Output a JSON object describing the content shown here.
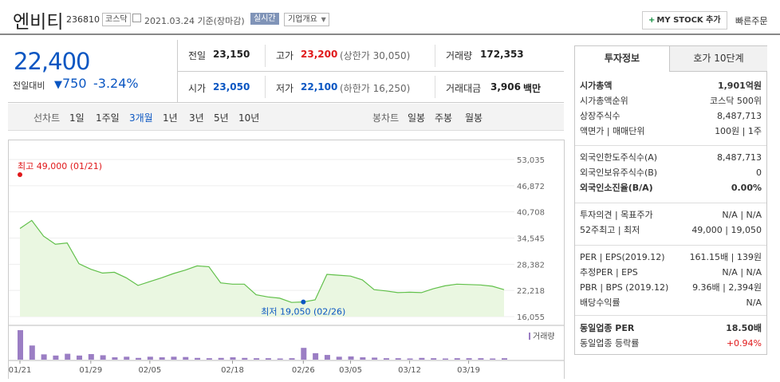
{
  "header": {
    "title": "엔비티",
    "code": "236810",
    "market_tag": "코스닥",
    "date_text": "2021.03.24  기준(장마감)",
    "realtime_tag": "실시간",
    "corp_overview": "기업개요",
    "my_stock_button": "MY STOCK 추가",
    "quick_order": "빠른주문"
  },
  "price": {
    "current": "22,400",
    "prev_diff_label": "전일대비",
    "change_amount": "750",
    "change_pct": "-3.24%",
    "color": "#0a56c2"
  },
  "quote_grid": {
    "prev_close_label": "전일",
    "prev_close": "23,150",
    "high_label": "고가",
    "high": "23,200",
    "upper_limit": "(상한가 30,050)",
    "volume_label": "거래량",
    "volume": "172,353",
    "open_label": "시가",
    "open": "23,050",
    "low_label": "저가",
    "low": "22,100",
    "lower_limit": "(하한가 16,250)",
    "amount_label": "거래대금",
    "amount": "3,906",
    "amount_unit": "백만"
  },
  "period_tabs": {
    "line_chart_label": "선차트",
    "items": [
      "1일",
      "1주일",
      "3개월",
      "1년",
      "3년",
      "5년",
      "10년"
    ],
    "selected": "3개월",
    "candle_label": "봉차트",
    "candle_items": [
      "일봉",
      "주봉",
      "월봉"
    ]
  },
  "chart_data": {
    "type": "line",
    "x": [
      "01/21",
      "01/22",
      "01/25",
      "01/26",
      "01/27",
      "01/28",
      "01/29",
      "02/01",
      "02/02",
      "02/03",
      "02/04",
      "02/05",
      "02/08",
      "02/09",
      "02/10",
      "02/15",
      "02/16",
      "02/17",
      "02/18",
      "02/19",
      "02/22",
      "02/23",
      "02/24",
      "02/25",
      "02/26",
      "03/02",
      "03/03",
      "03/04",
      "03/05",
      "03/08",
      "03/09",
      "03/10",
      "03/11",
      "03/12",
      "03/15",
      "03/16",
      "03/17",
      "03/18",
      "03/19",
      "03/22",
      "03/23",
      "03/24"
    ],
    "y": [
      36800,
      38700,
      35000,
      33100,
      33400,
      28500,
      27200,
      26300,
      26500,
      25200,
      23400,
      24300,
      25200,
      26200,
      27000,
      28000,
      27800,
      24000,
      23700,
      23700,
      21200,
      20700,
      20400,
      19400,
      19500,
      20000,
      26000,
      25800,
      25600,
      24700,
      22400,
      22100,
      21700,
      21800,
      21700,
      22600,
      23300,
      23700,
      23600,
      23500,
      23200,
      22400
    ],
    "yticks": [
      "53,035",
      "46,872",
      "40,708",
      "34,545",
      "28,382",
      "22,218",
      "16,055"
    ],
    "ylim": [
      16055,
      53035
    ],
    "xticks": [
      "01/21",
      "01/29",
      "02/05",
      "02/18",
      "02/26",
      "03/05",
      "03/12",
      "03/19"
    ],
    "high_label": "최고 49,000 (01/21)",
    "low_label": "최저 19,050 (02/26)",
    "volume_label": "거래량",
    "volume": [
      100,
      48,
      18,
      14,
      20,
      14,
      19,
      15,
      8,
      10,
      6,
      10,
      8,
      10,
      9,
      6,
      5,
      6,
      8,
      6,
      5,
      5,
      4,
      5,
      40,
      22,
      16,
      10,
      11,
      8,
      7,
      5,
      5,
      4,
      6,
      5,
      4,
      5,
      5,
      5,
      4,
      5
    ],
    "line_color": "#61c04a",
    "fill_color": "#eaf7e1",
    "volume_color": "#9b7ec4"
  },
  "right_panel": {
    "tab1": "투자정보",
    "tab2": "호가 10단계",
    "rows1": [
      {
        "k": "시가총액",
        "v": "1,901억원",
        "bold": true
      },
      {
        "k": "시가총액순위",
        "v": "코스닥 500위"
      },
      {
        "k": "상장주식수",
        "v": "8,487,713"
      },
      {
        "k": "액면가 | 매매단위",
        "v": "100원 | 1주"
      }
    ],
    "rows2": [
      {
        "k": "외국인한도주식수(A)",
        "v": "8,487,713"
      },
      {
        "k": "외국인보유주식수(B)",
        "v": "0"
      },
      {
        "k": "외국인소진율(B/A)",
        "v": "0.00%",
        "bold": true
      }
    ],
    "rows3": [
      {
        "k": "투자의견 | 목표주가",
        "v": "N/A | N/A"
      },
      {
        "k": "52주최고 | 최저",
        "v": "49,000 | 19,050"
      }
    ],
    "rows4": [
      {
        "k": "PER | EPS(2019.12)",
        "v": "161.15배 | 139원"
      },
      {
        "k": "추정PER | EPS",
        "v": "N/A | N/A"
      },
      {
        "k": "PBR | BPS (2019.12)",
        "v": "9.36배 | 2,394원"
      },
      {
        "k": "배당수익률",
        "v": "N/A"
      }
    ],
    "rows5": [
      {
        "k": "동일업종 PER",
        "v": "18.50배",
        "bold": true
      },
      {
        "k": "동일업종 등락률",
        "v": "+0.94%",
        "red": true
      }
    ]
  }
}
